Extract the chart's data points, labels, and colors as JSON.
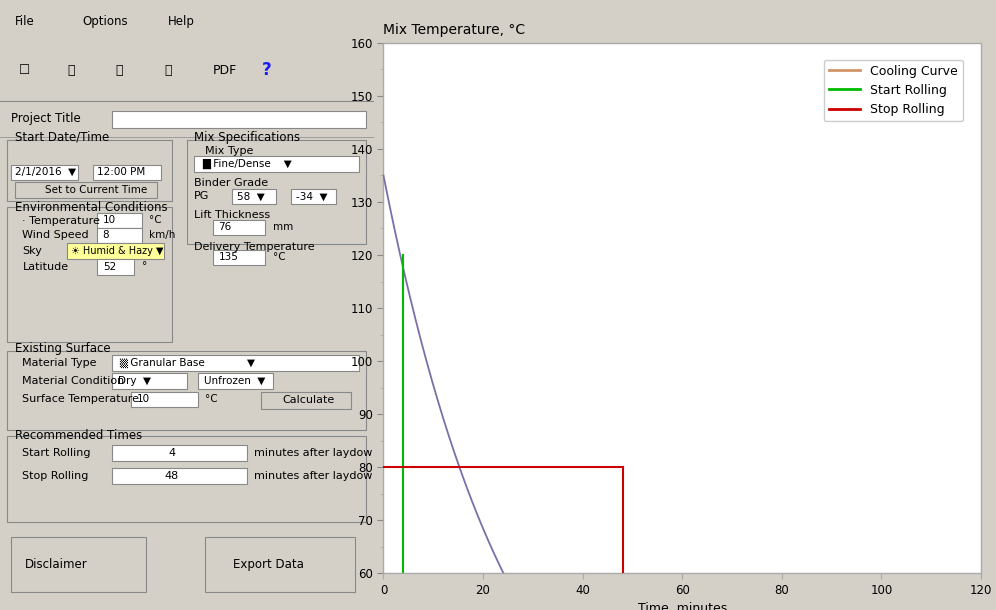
{
  "title": "Mix Temperature, °C",
  "xlabel": "Time, minutes",
  "ylim": [
    60,
    160
  ],
  "xlim": [
    0,
    120
  ],
  "yticks": [
    60,
    70,
    80,
    90,
    100,
    110,
    120,
    130,
    140,
    150,
    160
  ],
  "xticks": [
    0,
    20,
    40,
    60,
    80,
    100,
    120
  ],
  "cooling_color": "#7B6FAA",
  "cooling_legend_color": "#D2956A",
  "start_rolling_color": "#00BB00",
  "stop_rolling_color": "#CC0000",
  "start_rolling_time": 4,
  "start_rolling_temp_top": 120,
  "stop_rolling_temp": 80,
  "stop_rolling_time": 48,
  "T0": 135,
  "T_ambient": 10,
  "decay_constant": 0.038,
  "ui_bg": "#D4D0C8",
  "plot_bg": "#FFFFFF",
  "plot_border": "#888888",
  "legend_labels": [
    "Cooling Curve",
    "Start Rolling",
    "Stop Rolling"
  ],
  "title_fontsize": 10,
  "axis_fontsize": 9,
  "tick_fontsize": 8.5,
  "legend_fontsize": 9,
  "menubar_bg": "#D4D0C8",
  "menubar_text_color": "#000000",
  "figure_width": 9.96,
  "figure_height": 6.1,
  "figure_dpi": 100
}
